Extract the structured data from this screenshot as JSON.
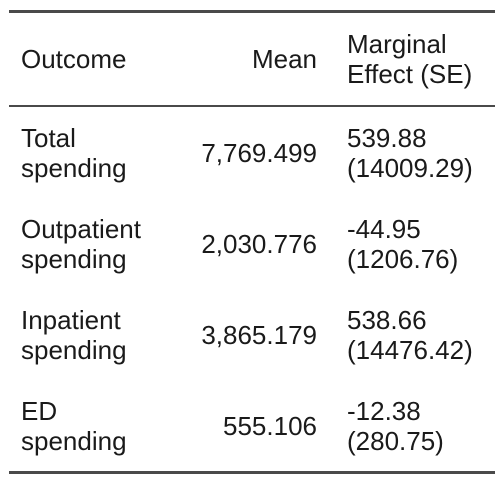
{
  "table": {
    "headers": {
      "outcome": "Outcome",
      "mean": "Mean",
      "me_line1": "Marginal",
      "me_line2": "Effect (SE)"
    },
    "rows": [
      {
        "outcome_line1": "Total",
        "outcome_line2": "spending",
        "mean": "7,769.499",
        "effect": "539.88",
        "se": "(14009.29)"
      },
      {
        "outcome_line1": "Outpatient",
        "outcome_line2": "spending",
        "mean": "2,030.776",
        "effect": "-44.95",
        "se": "(1206.76)"
      },
      {
        "outcome_line1": "Inpatient",
        "outcome_line2": "spending",
        "mean": "3,865.179",
        "effect": "538.66",
        "se": "(14476.42)"
      },
      {
        "outcome_line1": "ED",
        "outcome_line2": "spending",
        "mean": "555.106",
        "effect": "-12.38",
        "se": "(280.75)"
      }
    ]
  }
}
